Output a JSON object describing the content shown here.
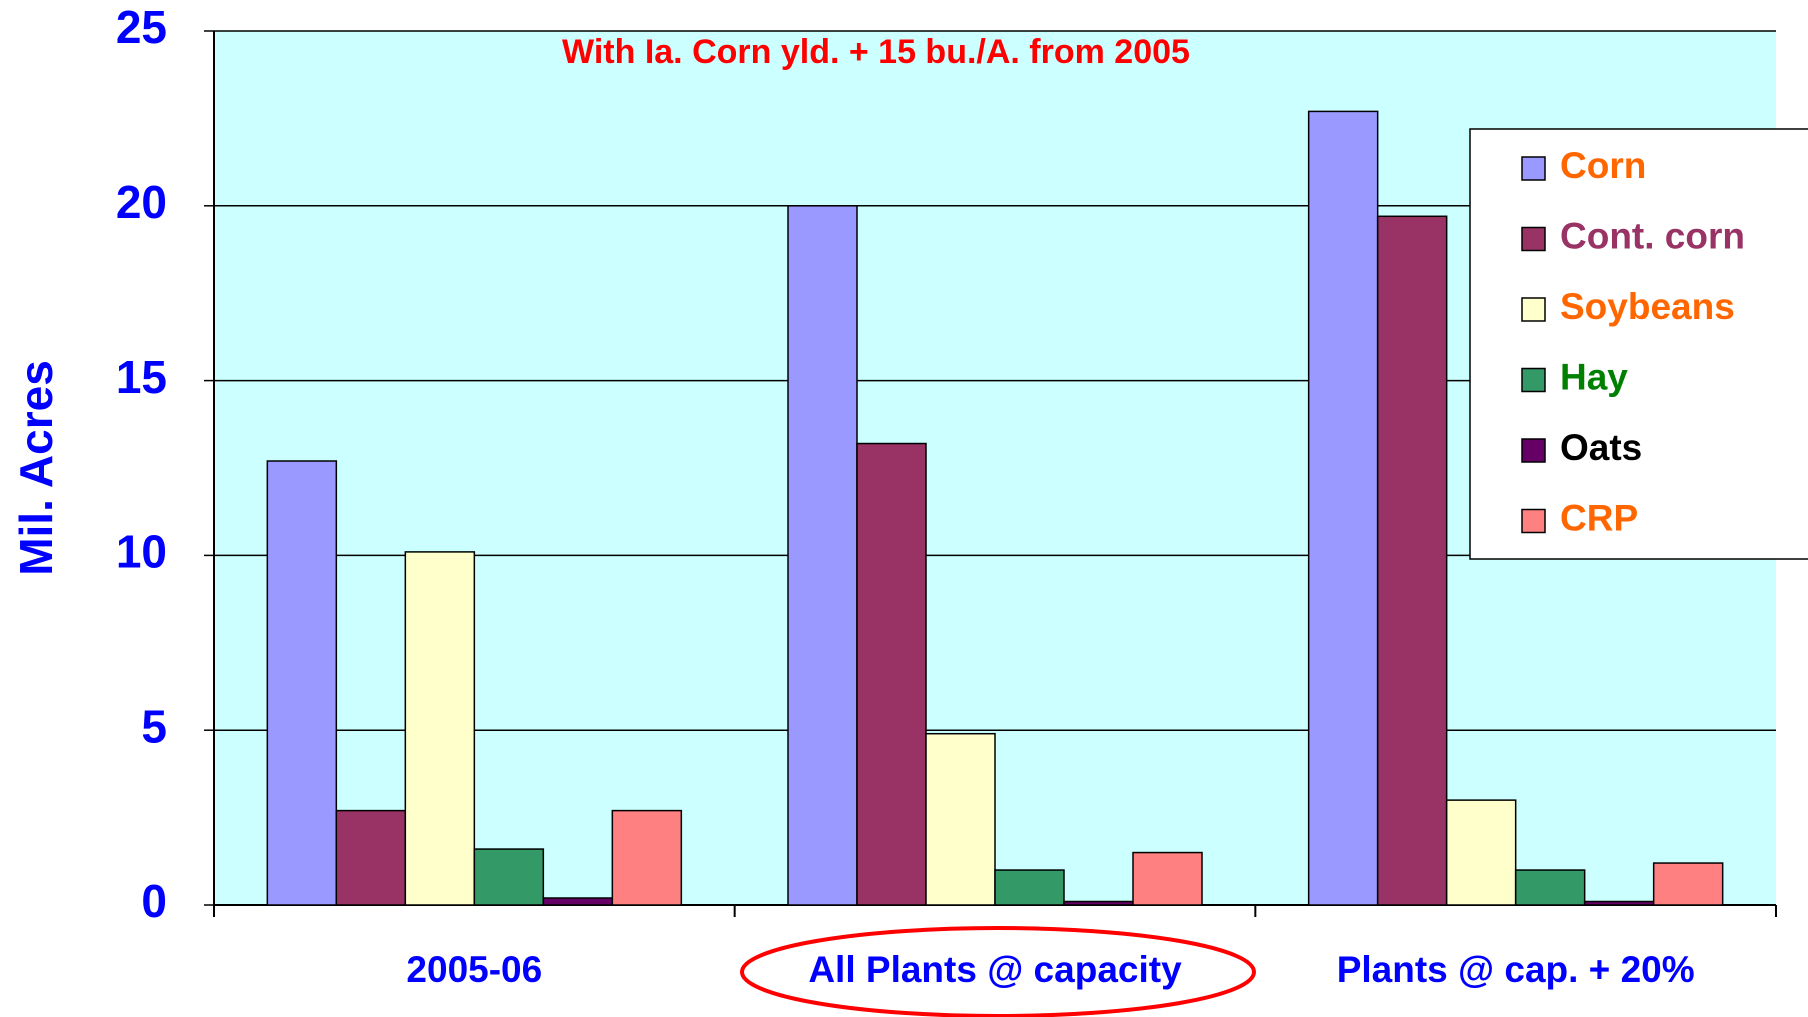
{
  "chart_data": {
    "type": "bar",
    "title": "With Ia. Corn yld. + 15 bu./A. from 2005",
    "y_label": "Mil. Acres",
    "categories": [
      "2005-06",
      "All Plants @ capacity",
      "Plants @ cap. + 20%"
    ],
    "series": [
      {
        "name": "Corn",
        "color": "#9999ff",
        "label_color": "#ff6600",
        "values": [
          12.7,
          20.0,
          22.7
        ]
      },
      {
        "name": "Cont. corn",
        "color": "#993366",
        "label_color": "#993366",
        "values": [
          2.7,
          13.2,
          19.7
        ]
      },
      {
        "name": "Soybeans",
        "color": "#ffffcc",
        "label_color": "#ff6600",
        "values": [
          10.1,
          4.9,
          3.0
        ]
      },
      {
        "name": "Hay",
        "color": "#339966",
        "label_color": "#008000",
        "values": [
          1.6,
          1.0,
          1.0
        ]
      },
      {
        "name": "Oats",
        "color": "#660066",
        "label_color": "#000000",
        "values": [
          0.2,
          0.1,
          0.1
        ]
      },
      {
        "name": "CRP",
        "color": "#ff8080",
        "label_color": "#ff6600",
        "values": [
          2.7,
          1.5,
          1.2
        ]
      }
    ],
    "ylim": [
      0,
      25
    ],
    "yticks": [
      0,
      5,
      10,
      15,
      20,
      25
    ],
    "grid": true,
    "legend": "upper right",
    "plot_background": "#ccffff"
  }
}
